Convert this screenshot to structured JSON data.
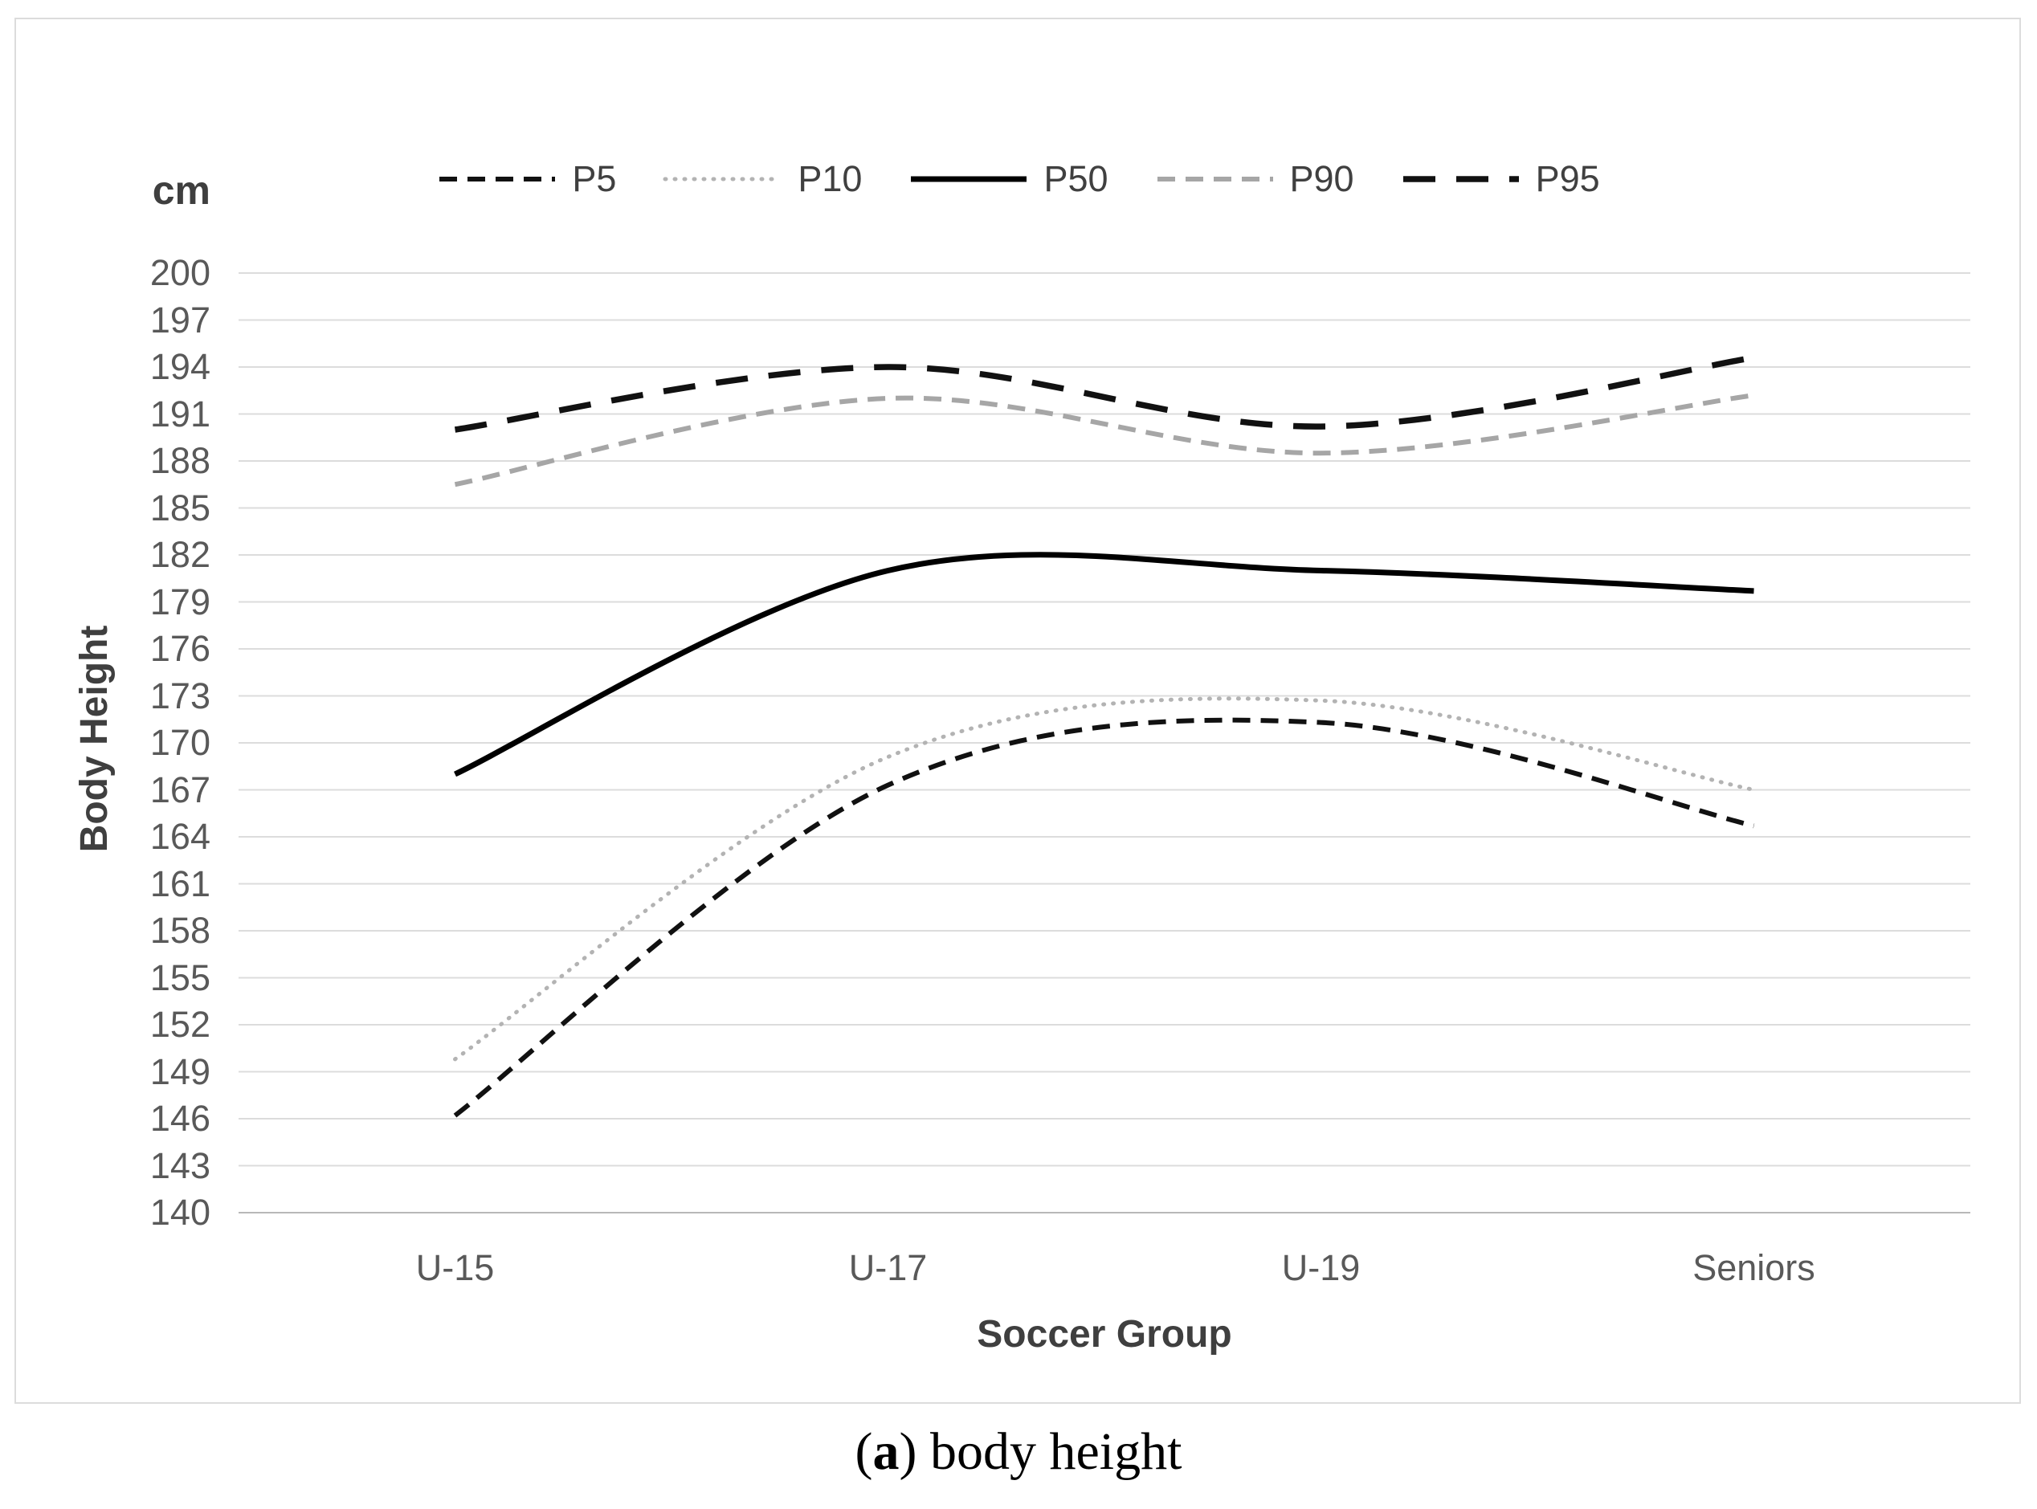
{
  "caption": {
    "prefix": "(",
    "letter": "a",
    "rest": ") body height"
  },
  "chart_data": {
    "type": "line",
    "title": "",
    "unit_label": "cm",
    "ylabel": "Body Height",
    "xlabel": "Soccer Group",
    "categories": [
      "U-15",
      "U-17",
      "U-19",
      "Seniors"
    ],
    "y_axis": {
      "min": 140,
      "max": 200,
      "step": 3
    },
    "grid": true,
    "legend_position": "top",
    "series": [
      {
        "name": "P5",
        "style": "dashed",
        "color": "#111111",
        "values": [
          146.2,
          167.3,
          171.3,
          164.7
        ]
      },
      {
        "name": "P10",
        "style": "dotted",
        "color": "#b3b3b3",
        "values": [
          149.8,
          169.1,
          172.7,
          167.0
        ]
      },
      {
        "name": "P50",
        "style": "solid",
        "color": "#000000",
        "values": [
          168.0,
          181.0,
          181.0,
          179.7
        ]
      },
      {
        "name": "P90",
        "style": "dashed",
        "color": "#a6a6a6",
        "values": [
          186.5,
          192.0,
          188.5,
          192.2
        ]
      },
      {
        "name": "P95",
        "style": "long-dash",
        "color": "#111111",
        "values": [
          190.0,
          194.0,
          190.2,
          194.6
        ]
      }
    ]
  }
}
